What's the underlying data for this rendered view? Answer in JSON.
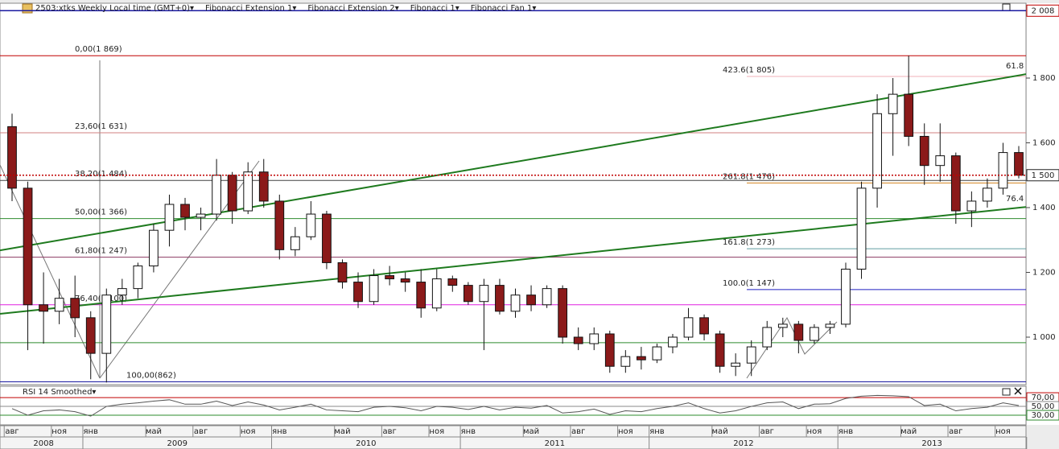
{
  "chart_data": {
    "type": "candlestick",
    "toolbar": [
      "2503:xtks Weekly Local time (GMT+0)▾",
      "Fibonacci Extension 1▾",
      "Fibonacci Extension 2▾",
      "Fibonacci 1▾",
      "Fibonacci Fan 1▾"
    ],
    "x": [
      "2008-08",
      "2008-09",
      "2008-10",
      "2008-11",
      "2008-12",
      "2009-01",
      "2009-02",
      "2009-03",
      "2009-04",
      "2009-05",
      "2009-06",
      "2009-07",
      "2009-08",
      "2009-09",
      "2009-10",
      "2009-11",
      "2009-12",
      "2010-01",
      "2010-02",
      "2010-03",
      "2010-04",
      "2010-05",
      "2010-06",
      "2010-07",
      "2010-08",
      "2010-09",
      "2010-10",
      "2010-11",
      "2010-12",
      "2011-01",
      "2011-02",
      "2011-03",
      "2011-04",
      "2011-05",
      "2011-06",
      "2011-07",
      "2011-08",
      "2011-09",
      "2011-10",
      "2011-11",
      "2011-12",
      "2012-01",
      "2012-02",
      "2012-03",
      "2012-04",
      "2012-05",
      "2012-06",
      "2012-07",
      "2012-08",
      "2012-09",
      "2012-10",
      "2012-11",
      "2012-12",
      "2013-01",
      "2013-02",
      "2013-03",
      "2013-04",
      "2013-05",
      "2013-06",
      "2013-07",
      "2013-08",
      "2013-09",
      "2013-10",
      "2013-11",
      "2013-12"
    ],
    "open": [
      1650,
      1460,
      1100,
      1080,
      1120,
      1060,
      950,
      1130,
      1150,
      1220,
      1330,
      1410,
      1370,
      1380,
      1500,
      1390,
      1510,
      1420,
      1270,
      1310,
      1380,
      1230,
      1170,
      1110,
      1190,
      1180,
      1170,
      1090,
      1180,
      1160,
      1110,
      1160,
      1080,
      1130,
      1100,
      1150,
      1000,
      980,
      1010,
      910,
      940,
      930,
      970,
      1000,
      1060,
      1010,
      910,
      920,
      970,
      1030,
      1040,
      990,
      1030,
      1040,
      1210,
      1460,
      1690,
      1750,
      1620,
      1530,
      1560,
      1390,
      1420,
      1460,
      1570
    ],
    "high": [
      1690,
      1480,
      1200,
      1180,
      1190,
      1080,
      1150,
      1180,
      1230,
      1350,
      1440,
      1430,
      1400,
      1550,
      1510,
      1540,
      1550,
      1440,
      1340,
      1420,
      1390,
      1240,
      1200,
      1210,
      1220,
      1200,
      1210,
      1210,
      1190,
      1170,
      1180,
      1180,
      1150,
      1160,
      1160,
      1160,
      1030,
      1030,
      1020,
      960,
      970,
      980,
      1010,
      1090,
      1070,
      1020,
      950,
      990,
      1050,
      1060,
      1050,
      1040,
      1050,
      1230,
      1480,
      1750,
      1800,
      1869,
      1660,
      1660,
      1570,
      1450,
      1490,
      1600,
      1590
    ],
    "low": [
      1420,
      960,
      980,
      1040,
      1000,
      870,
      860,
      1100,
      1120,
      1200,
      1280,
      1330,
      1330,
      1360,
      1350,
      1380,
      1400,
      1240,
      1250,
      1300,
      1210,
      1150,
      1090,
      1100,
      1160,
      1140,
      1060,
      1080,
      1140,
      1100,
      960,
      1070,
      1060,
      1080,
      1090,
      980,
      960,
      960,
      890,
      890,
      900,
      920,
      950,
      990,
      990,
      890,
      880,
      880,
      960,
      1000,
      950,
      980,
      1010,
      1030,
      1180,
      1400,
      1560,
      1590,
      1470,
      1480,
      1350,
      1340,
      1400,
      1440,
      1490
    ],
    "close": [
      1460,
      1100,
      1080,
      1120,
      1060,
      950,
      1130,
      1150,
      1220,
      1330,
      1410,
      1370,
      1380,
      1500,
      1390,
      1510,
      1420,
      1270,
      1310,
      1380,
      1230,
      1170,
      1110,
      1190,
      1180,
      1170,
      1090,
      1180,
      1160,
      1110,
      1160,
      1080,
      1130,
      1100,
      1150,
      1000,
      980,
      1010,
      910,
      940,
      930,
      970,
      1000,
      1060,
      1010,
      910,
      920,
      970,
      1030,
      1040,
      990,
      1030,
      1040,
      1210,
      1460,
      1690,
      1750,
      1620,
      1530,
      1560,
      1390,
      1420,
      1460,
      1570,
      1500
    ],
    "up_color": "#ffffff",
    "down_color": "#8b1a1a",
    "ylim": [
      850,
      2020
    ],
    "yticks": [
      {
        "value": 1000,
        "label": "1 000"
      },
      {
        "value": 1200,
        "label": "1 200"
      },
      {
        "value": 1400,
        "label": "1 400"
      },
      {
        "value": 1600,
        "label": "1 600"
      },
      {
        "value": 1800,
        "label": "1 800"
      }
    ],
    "xticks": [
      {
        "value": "2008-08",
        "label": "авг"
      },
      {
        "value": "2008-11",
        "label": "ноя"
      },
      {
        "value": "2009-01",
        "label": "янв"
      },
      {
        "value": "2009-05",
        "label": "май"
      },
      {
        "value": "2009-08",
        "label": "авг"
      },
      {
        "value": "2009-11",
        "label": "ноя"
      },
      {
        "value": "2010-01",
        "label": "янв"
      },
      {
        "value": "2010-05",
        "label": "май"
      },
      {
        "value": "2010-08",
        "label": "авг"
      },
      {
        "value": "2010-11",
        "label": "ноя"
      },
      {
        "value": "2011-01",
        "label": "янв"
      },
      {
        "value": "2011-05",
        "label": "май"
      },
      {
        "value": "2011-08",
        "label": "авг"
      },
      {
        "value": "2011-11",
        "label": "ноя"
      },
      {
        "value": "2012-01",
        "label": "янв"
      },
      {
        "value": "2012-05",
        "label": "май"
      },
      {
        "value": "2012-08",
        "label": "авг"
      },
      {
        "value": "2012-11",
        "label": "ноя"
      },
      {
        "value": "2013-01",
        "label": "янв"
      },
      {
        "value": "2013-05",
        "label": "май"
      },
      {
        "value": "2013-08",
        "label": "авг"
      },
      {
        "value": "2013-11",
        "label": "ноя"
      }
    ],
    "years": [
      "2008",
      "2009",
      "2010",
      "2011",
      "2012",
      "2013"
    ],
    "fib_levels": [
      {
        "label": "0,00(1 869)",
        "value": 1869,
        "color": "#c00000"
      },
      {
        "label": "23,60(1 631)",
        "value": 1631,
        "color": "#d08080"
      },
      {
        "label": "38,20(1 484)",
        "value": 1484,
        "color": "#404040"
      },
      {
        "label": "50,00(1 366)",
        "value": 1366,
        "color": "#2e8b2e"
      },
      {
        "label": "61,80(1 247)",
        "value": 1247,
        "color": "#8b3a62"
      },
      {
        "label": "76,40(1 100)",
        "value": 1100,
        "color": "#e020e0"
      },
      {
        "label": "100,00(862)",
        "value": 862,
        "color": "#1a1aa0"
      }
    ],
    "ext_levels": [
      {
        "label": "423.6(1 805)",
        "value": 1805,
        "color": "#f0b0b8"
      },
      {
        "label": "261.8(1 476)",
        "value": 1476,
        "color": "#d2821e"
      },
      {
        "label": "161.8(1 273)",
        "value": 1273,
        "color": "#5f9ea0"
      },
      {
        "label": "100.0(1 147)",
        "value": 1147,
        "color": "#2020c0"
      }
    ],
    "fan": [
      {
        "label": "61.8",
        "start": 1268,
        "end": 1812,
        "color": "#1e7a1e"
      },
      {
        "label": "76.4",
        "start": 1072,
        "end": 1402,
        "color": "#1e7a1e"
      }
    ],
    "hline": {
      "value": 983,
      "color": "#2e8b2e"
    },
    "last_price": {
      "value": 1500,
      "label": "1 500",
      "color": "#c00000"
    },
    "top_label": {
      "value": 2008,
      "label": "2 008",
      "color": "#c00000"
    },
    "rsi": {
      "title": "RSI 14 Smoothed▾",
      "color": "#555555",
      "ylim": [
        10,
        92
      ],
      "values": [
        45,
        30,
        40,
        42,
        38,
        28,
        50,
        55,
        58,
        62,
        65,
        55,
        55,
        62,
        52,
        60,
        53,
        42,
        48,
        55,
        42,
        40,
        38,
        48,
        50,
        47,
        40,
        50,
        48,
        43,
        50,
        42,
        48,
        46,
        52,
        35,
        38,
        44,
        32,
        40,
        38,
        45,
        50,
        58,
        45,
        35,
        40,
        50,
        58,
        60,
        45,
        55,
        56,
        68,
        73,
        75,
        74,
        72,
        52,
        55,
        40,
        45,
        48,
        58,
        52
      ],
      "levels": [
        {
          "value": 70,
          "label": "70,00",
          "color": "#c00000"
        },
        {
          "value": 50,
          "label": "50,00",
          "color": "#888888"
        },
        {
          "value": 30,
          "label": "30,00",
          "color": "#2e8b2e"
        }
      ]
    }
  }
}
